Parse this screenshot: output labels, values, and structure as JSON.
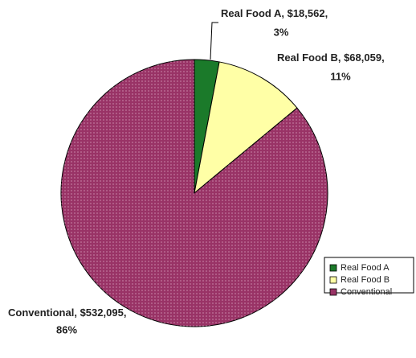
{
  "chart_data": {
    "type": "pie",
    "categories": [
      "Real Food A",
      "Real Food B",
      "Conventional"
    ],
    "values": [
      18562,
      68059,
      532095
    ],
    "value_labels": [
      "$18,562",
      "$68,059",
      "$532,095"
    ],
    "percent_labels": [
      "3%",
      "11%",
      "86%"
    ],
    "label_separator": ", ",
    "colors": [
      "#1b7a2a",
      "#ffffa6",
      "#993366"
    ],
    "legend": "lower right"
  }
}
